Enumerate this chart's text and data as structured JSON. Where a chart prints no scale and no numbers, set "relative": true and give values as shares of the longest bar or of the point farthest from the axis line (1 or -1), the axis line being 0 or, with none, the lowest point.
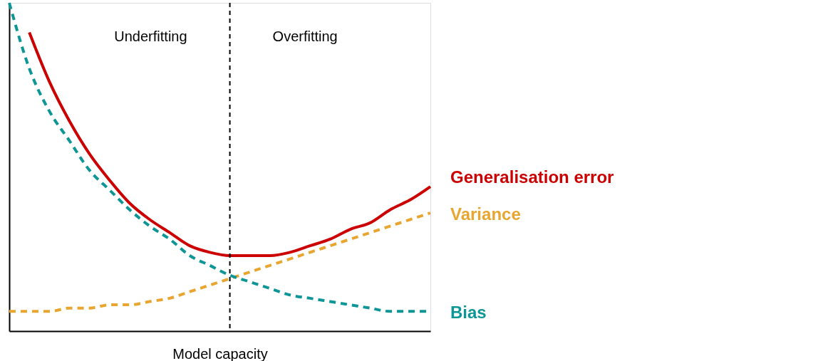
{
  "chart_data": {
    "type": "line",
    "relative": true,
    "xlabel": "Model capacity",
    "categories": [
      null,
      null,
      null,
      null,
      null,
      null,
      null,
      null,
      null,
      null,
      null,
      null,
      null,
      null,
      null,
      null,
      null,
      null,
      null,
      null,
      null,
      null
    ],
    "series": [
      {
        "name": "Generalisation error",
        "color": "#cc0000",
        "line_style": "solid",
        "values": [
          null,
          0.91,
          0.76,
          0.64,
          0.54,
          0.46,
          0.39,
          0.34,
          0.3,
          0.26,
          0.24,
          0.23,
          0.23,
          0.23,
          0.24,
          0.26,
          0.28,
          0.31,
          0.33,
          0.37,
          0.4,
          0.44
        ]
      },
      {
        "name": "Variance",
        "color": "#e8a630",
        "line_style": "dashed",
        "values": [
          0.06,
          0.06,
          0.06,
          0.07,
          0.07,
          0.08,
          0.08,
          0.09,
          0.1,
          0.12,
          0.14,
          0.16,
          0.18,
          0.2,
          0.22,
          0.24,
          0.26,
          0.28,
          0.3,
          0.32,
          0.34,
          0.36
        ]
      },
      {
        "name": "Bias",
        "color": "#0e9696",
        "line_style": "dashed",
        "values": [
          1.0,
          0.8,
          0.67,
          0.58,
          0.49,
          0.43,
          0.37,
          0.32,
          0.28,
          0.23,
          0.2,
          0.17,
          0.15,
          0.13,
          0.11,
          0.1,
          0.09,
          0.08,
          0.07,
          0.06,
          0.06,
          0.06
        ]
      }
    ],
    "annotations": [
      "Underfitting",
      "Overfitting"
    ],
    "grid": false,
    "marker": "none"
  }
}
